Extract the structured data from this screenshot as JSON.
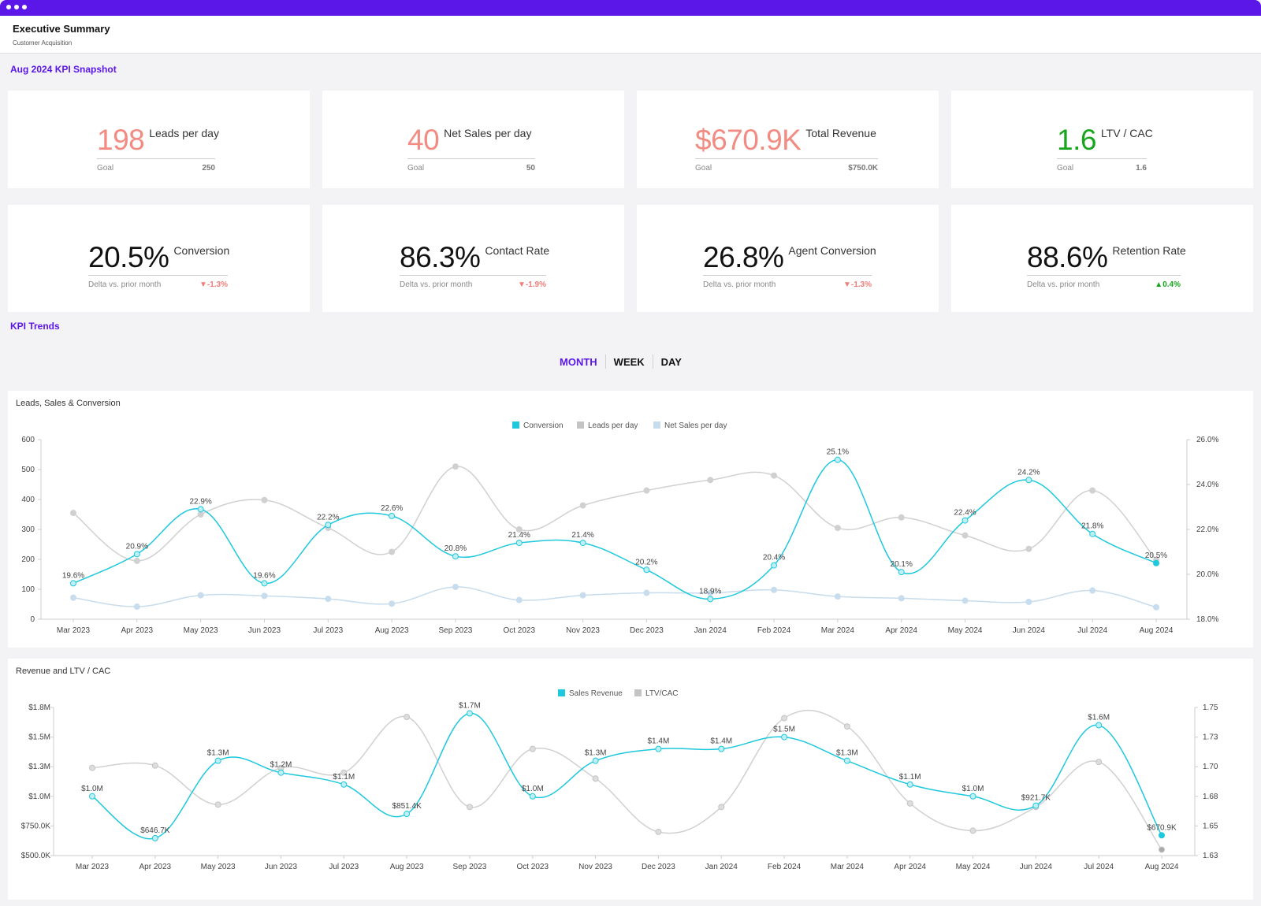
{
  "header": {
    "title": "Executive Summary",
    "subtitle": "Customer Acquisition"
  },
  "sections": {
    "snapshot": "Aug 2024 KPI Snapshot",
    "trends": "KPI Trends"
  },
  "kpis_top": [
    {
      "value": "198",
      "label": "Leads per day",
      "sub_label": "Goal",
      "sub_value": "250",
      "color": "#f28b82"
    },
    {
      "value": "40",
      "label": "Net Sales per day",
      "sub_label": "Goal",
      "sub_value": "50",
      "color": "#f28b82"
    },
    {
      "value": "$670.9K",
      "label": "Total Revenue",
      "sub_label": "Goal",
      "sub_value": "$750.0K",
      "color": "#f28b82"
    },
    {
      "value": "1.6",
      "label": "LTV / CAC",
      "sub_label": "Goal",
      "sub_value": "1.6",
      "color": "#17a51d"
    }
  ],
  "kpis_bottom": [
    {
      "value": "20.5%",
      "label": "Conversion",
      "sub_label": "Delta vs. prior month",
      "sub_value": "▼-1.3%",
      "trend": "down"
    },
    {
      "value": "86.3%",
      "label": "Contact Rate",
      "sub_label": "Delta vs. prior month",
      "sub_value": "▼-1.9%",
      "trend": "down"
    },
    {
      "value": "26.8%",
      "label": "Agent Conversion",
      "sub_label": "Delta vs. prior month",
      "sub_value": "▼-1.3%",
      "trend": "down"
    },
    {
      "value": "88.6%",
      "label": "Retention Rate",
      "sub_label": "Delta vs. prior month",
      "sub_value": "▲0.4%",
      "trend": "up"
    }
  ],
  "toggle": {
    "options": [
      "MONTH",
      "WEEK",
      "DAY"
    ],
    "selected": "MONTH"
  },
  "colors": {
    "accent": "#5b16e8",
    "cyan": "#1ec8dd",
    "gray": "#c4c4c4",
    "light_blue": "#c7dcec"
  },
  "chart_data": [
    {
      "type": "line",
      "title": "Leads, Sales & Conversion",
      "categories": [
        "Mar 2023",
        "Apr 2023",
        "May 2023",
        "Jun 2023",
        "Jul 2023",
        "Aug 2023",
        "Sep 2023",
        "Oct 2023",
        "Nov 2023",
        "Dec 2023",
        "Jan 2024",
        "Feb 2024",
        "Mar 2024",
        "Apr 2024",
        "May 2024",
        "Jun 2024",
        "Jul 2024",
        "Aug 2024"
      ],
      "legend": [
        "Conversion",
        "Leads per day",
        "Net Sales per day"
      ],
      "legend_position": "top-center",
      "y_left": {
        "ticks": [
          "0",
          "100",
          "200",
          "300",
          "400",
          "500",
          "600"
        ],
        "range": [
          0,
          600
        ]
      },
      "y_right": {
        "ticks": [
          "18.0%",
          "20.0%",
          "22.0%",
          "24.0%",
          "26.0%"
        ],
        "range": [
          18,
          26
        ]
      },
      "series": [
        {
          "name": "Conversion",
          "axis": "right",
          "values": [
            19.6,
            20.9,
            22.9,
            19.6,
            22.2,
            22.6,
            20.8,
            21.4,
            21.4,
            20.2,
            18.9,
            20.4,
            25.1,
            20.1,
            22.4,
            24.2,
            21.8,
            20.5
          ],
          "labels": [
            "19.6%",
            "20.9%",
            "22.9%",
            "19.6%",
            "22.2%",
            "22.6%",
            "20.8%",
            "21.4%",
            "21.4%",
            "20.2%",
            "18.9%",
            "20.4%",
            "25.1%",
            "20.1%",
            "22.4%",
            "24.2%",
            "21.8%",
            "20.5%"
          ]
        },
        {
          "name": "Leads per day",
          "axis": "left",
          "values": [
            355,
            195,
            350,
            398,
            305,
            225,
            510,
            300,
            380,
            430,
            465,
            480,
            305,
            340,
            280,
            235,
            430,
            198
          ]
        },
        {
          "name": "Net Sales per day",
          "axis": "left",
          "values": [
            72,
            42,
            80,
            78,
            68,
            52,
            108,
            64,
            80,
            88,
            88,
            98,
            76,
            70,
            62,
            58,
            96,
            40
          ]
        }
      ]
    },
    {
      "type": "line",
      "title": "Revenue and LTV / CAC",
      "categories": [
        "Mar 2023",
        "Apr 2023",
        "May 2023",
        "Jun 2023",
        "Jul 2023",
        "Aug 2023",
        "Sep 2023",
        "Oct 2023",
        "Nov 2023",
        "Dec 2023",
        "Jan 2024",
        "Feb 2024",
        "Mar 2024",
        "Apr 2024",
        "May 2024",
        "Jun 2024",
        "Jul 2024",
        "Aug 2024"
      ],
      "legend": [
        "Sales Revenue",
        "LTV/CAC"
      ],
      "legend_position": "top-center",
      "y_left": {
        "ticks": [
          "$500.0K",
          "$750.0K",
          "$1.0M",
          "$1.3M",
          "$1.5M",
          "$1.8M"
        ]
      },
      "y_right": {
        "ticks": [
          "1.63",
          "1.65",
          "1.68",
          "1.70",
          "1.73",
          "1.75"
        ],
        "range": [
          1.625,
          1.75
        ]
      },
      "series": [
        {
          "name": "Sales Revenue",
          "axis": "left",
          "values": [
            1.0,
            0.6467,
            1.3,
            1.2,
            1.1,
            0.8514,
            1.7,
            1.0,
            1.3,
            1.4,
            1.4,
            1.5,
            1.3,
            1.1,
            1.0,
            0.9217,
            1.6,
            0.6709
          ],
          "labels": [
            "$1.0M",
            "$646.7K",
            "$1.3M",
            "$1.2M",
            "$1.1M",
            "$851.4K",
            "$1.7M",
            "$1.0M",
            "$1.3M",
            "$1.4M",
            "$1.4M",
            "$1.5M",
            "$1.3M",
            "$1.1M",
            "$1.0M",
            "$921.7K",
            "$1.6M",
            "$670.9K"
          ]
        },
        {
          "name": "LTV/CAC",
          "axis": "right",
          "values": [
            1.699,
            1.701,
            1.668,
            1.699,
            1.695,
            1.742,
            1.666,
            1.715,
            1.69,
            1.645,
            1.666,
            1.741,
            1.734,
            1.669,
            1.646,
            1.666,
            1.704,
            1.63
          ]
        }
      ]
    }
  ]
}
